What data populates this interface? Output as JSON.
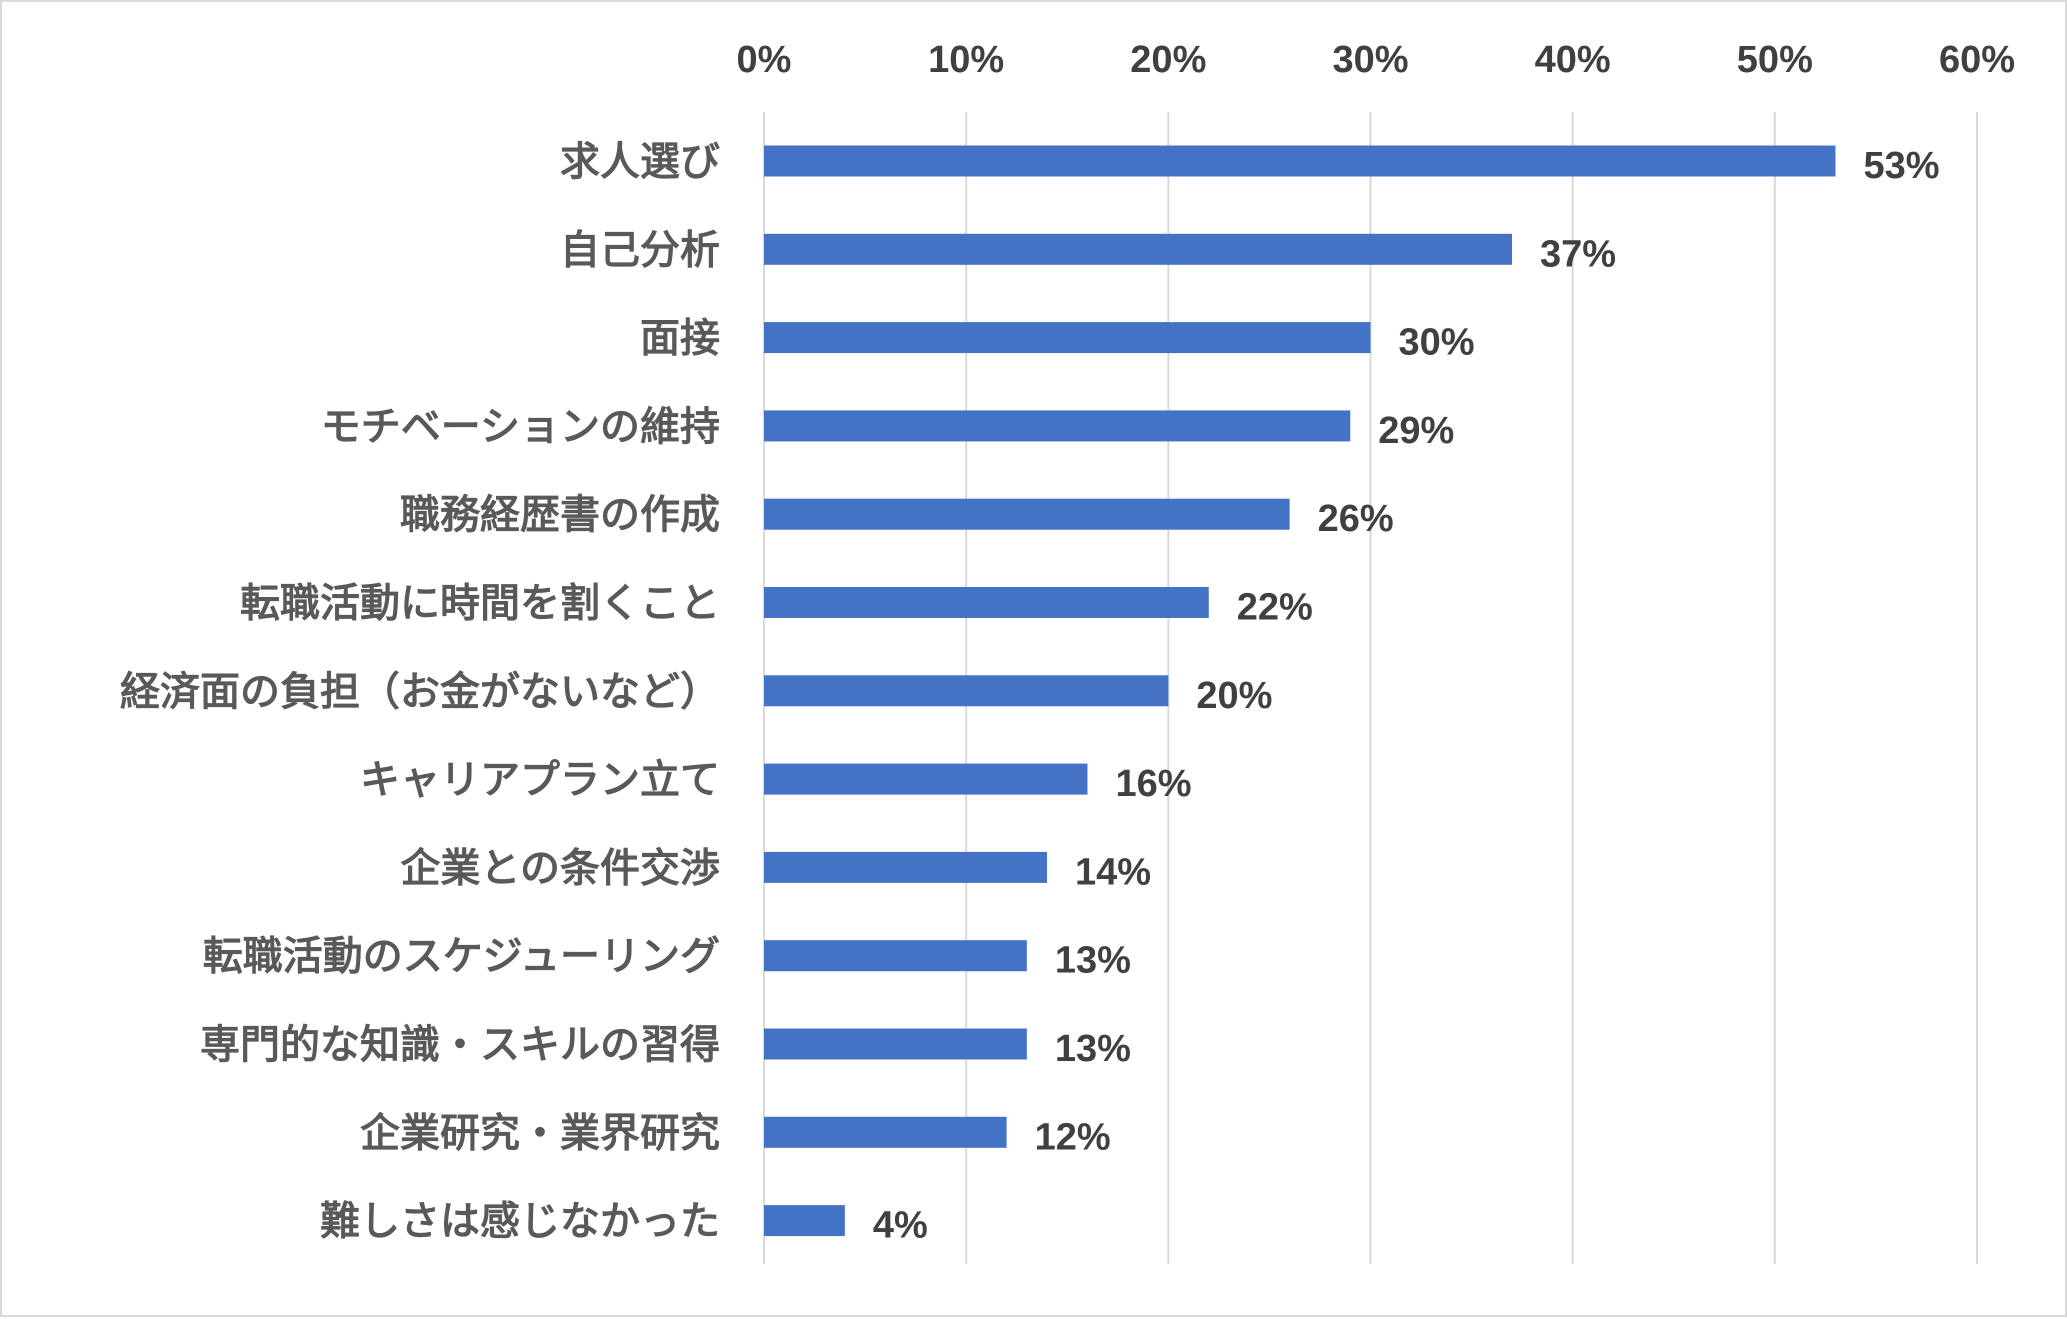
{
  "chart_data": {
    "type": "bar",
    "orientation": "horizontal",
    "categories": [
      "求人選び",
      "自己分析",
      "面接",
      "モチベーションの維持",
      "職務経歴書の作成",
      "転職活動に時間を割くこと",
      "経済面の負担（お金がないなど）",
      "キャリアプラン立て",
      "企業との条件交渉",
      "転職活動のスケジューリング",
      "専門的な知識・スキルの習得",
      "企業研究・業界研究",
      "難しさは感じなかった"
    ],
    "values": [
      53,
      37,
      30,
      29,
      26,
      22,
      20,
      16,
      14,
      13,
      13,
      12,
      4
    ],
    "value_labels": [
      "53%",
      "37%",
      "30%",
      "29%",
      "26%",
      "22%",
      "20%",
      "16%",
      "14%",
      "13%",
      "13%",
      "12%",
      "4%"
    ],
    "xlim": [
      0,
      60
    ],
    "xticks": [
      0,
      10,
      20,
      30,
      40,
      50,
      60
    ],
    "xtick_labels": [
      "0%",
      "10%",
      "20%",
      "30%",
      "40%",
      "50%",
      "60%"
    ],
    "x_axis_position": "top",
    "grid": true,
    "legend": "none",
    "bar_color": "#4472c4",
    "gridline_color": "#d9d9d9",
    "text_color": "#404040"
  }
}
